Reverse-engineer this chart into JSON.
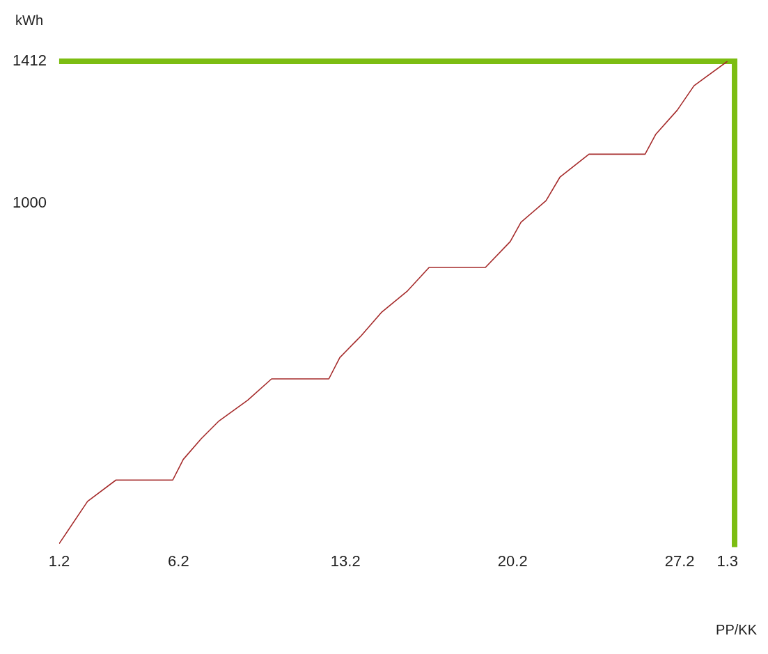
{
  "chart_data": {
    "type": "line",
    "xlabel": "PP/KK",
    "ylabel": "kWh",
    "color": "#a52a2a",
    "x": [
      "--02-01T00:00",
      "--02-02T04:34",
      "--02-03T09:07",
      "--02-05T18:14",
      "--02-06T04:48",
      "--02-06T22:48",
      "--02-07T16:48",
      "--02-08T21:36",
      "--02-09T21:36",
      "--02-12T07:12",
      "--02-12T18:14",
      "--02-13T15:36",
      "--02-14T12:00",
      "--02-15T14:24",
      "--02-16T12:00",
      "--02-18T20:38",
      "--02-19T21:36",
      "--02-20T08:24",
      "--02-21T09:36",
      "--02-21T23:31",
      "--02-23T04:48",
      "--02-25T13:12",
      "--02-26T00:00",
      "--02-26T21:36",
      "--02-27T14:24",
      "--03-01T00:00"
    ],
    "values": [
      10,
      133,
      195,
      195,
      255,
      315,
      367,
      427,
      489,
      489,
      551,
      614,
      682,
      745,
      813,
      813,
      888,
      944,
      1007,
      1075,
      1142,
      1142,
      1200,
      1270,
      1341,
      1412
    ],
    "xlim": [
      "--02-01T00:00",
      "--03-01T07:12"
    ],
    "ylim": [
      0,
      1412
    ],
    "xticks": [
      {
        "value": "--02-01",
        "label": "1.2"
      },
      {
        "value": "--02-06",
        "label": "6.2"
      },
      {
        "value": "--02-13",
        "label": "13.2"
      },
      {
        "value": "--02-20",
        "label": "20.2"
      },
      {
        "value": "--02-27",
        "label": "27.2"
      },
      {
        "value": "--03-01",
        "label": "1.3"
      }
    ],
    "yticks": [
      1000,
      1412
    ],
    "grid": false,
    "legend": false,
    "marker": "none",
    "line_style": "solid"
  }
}
